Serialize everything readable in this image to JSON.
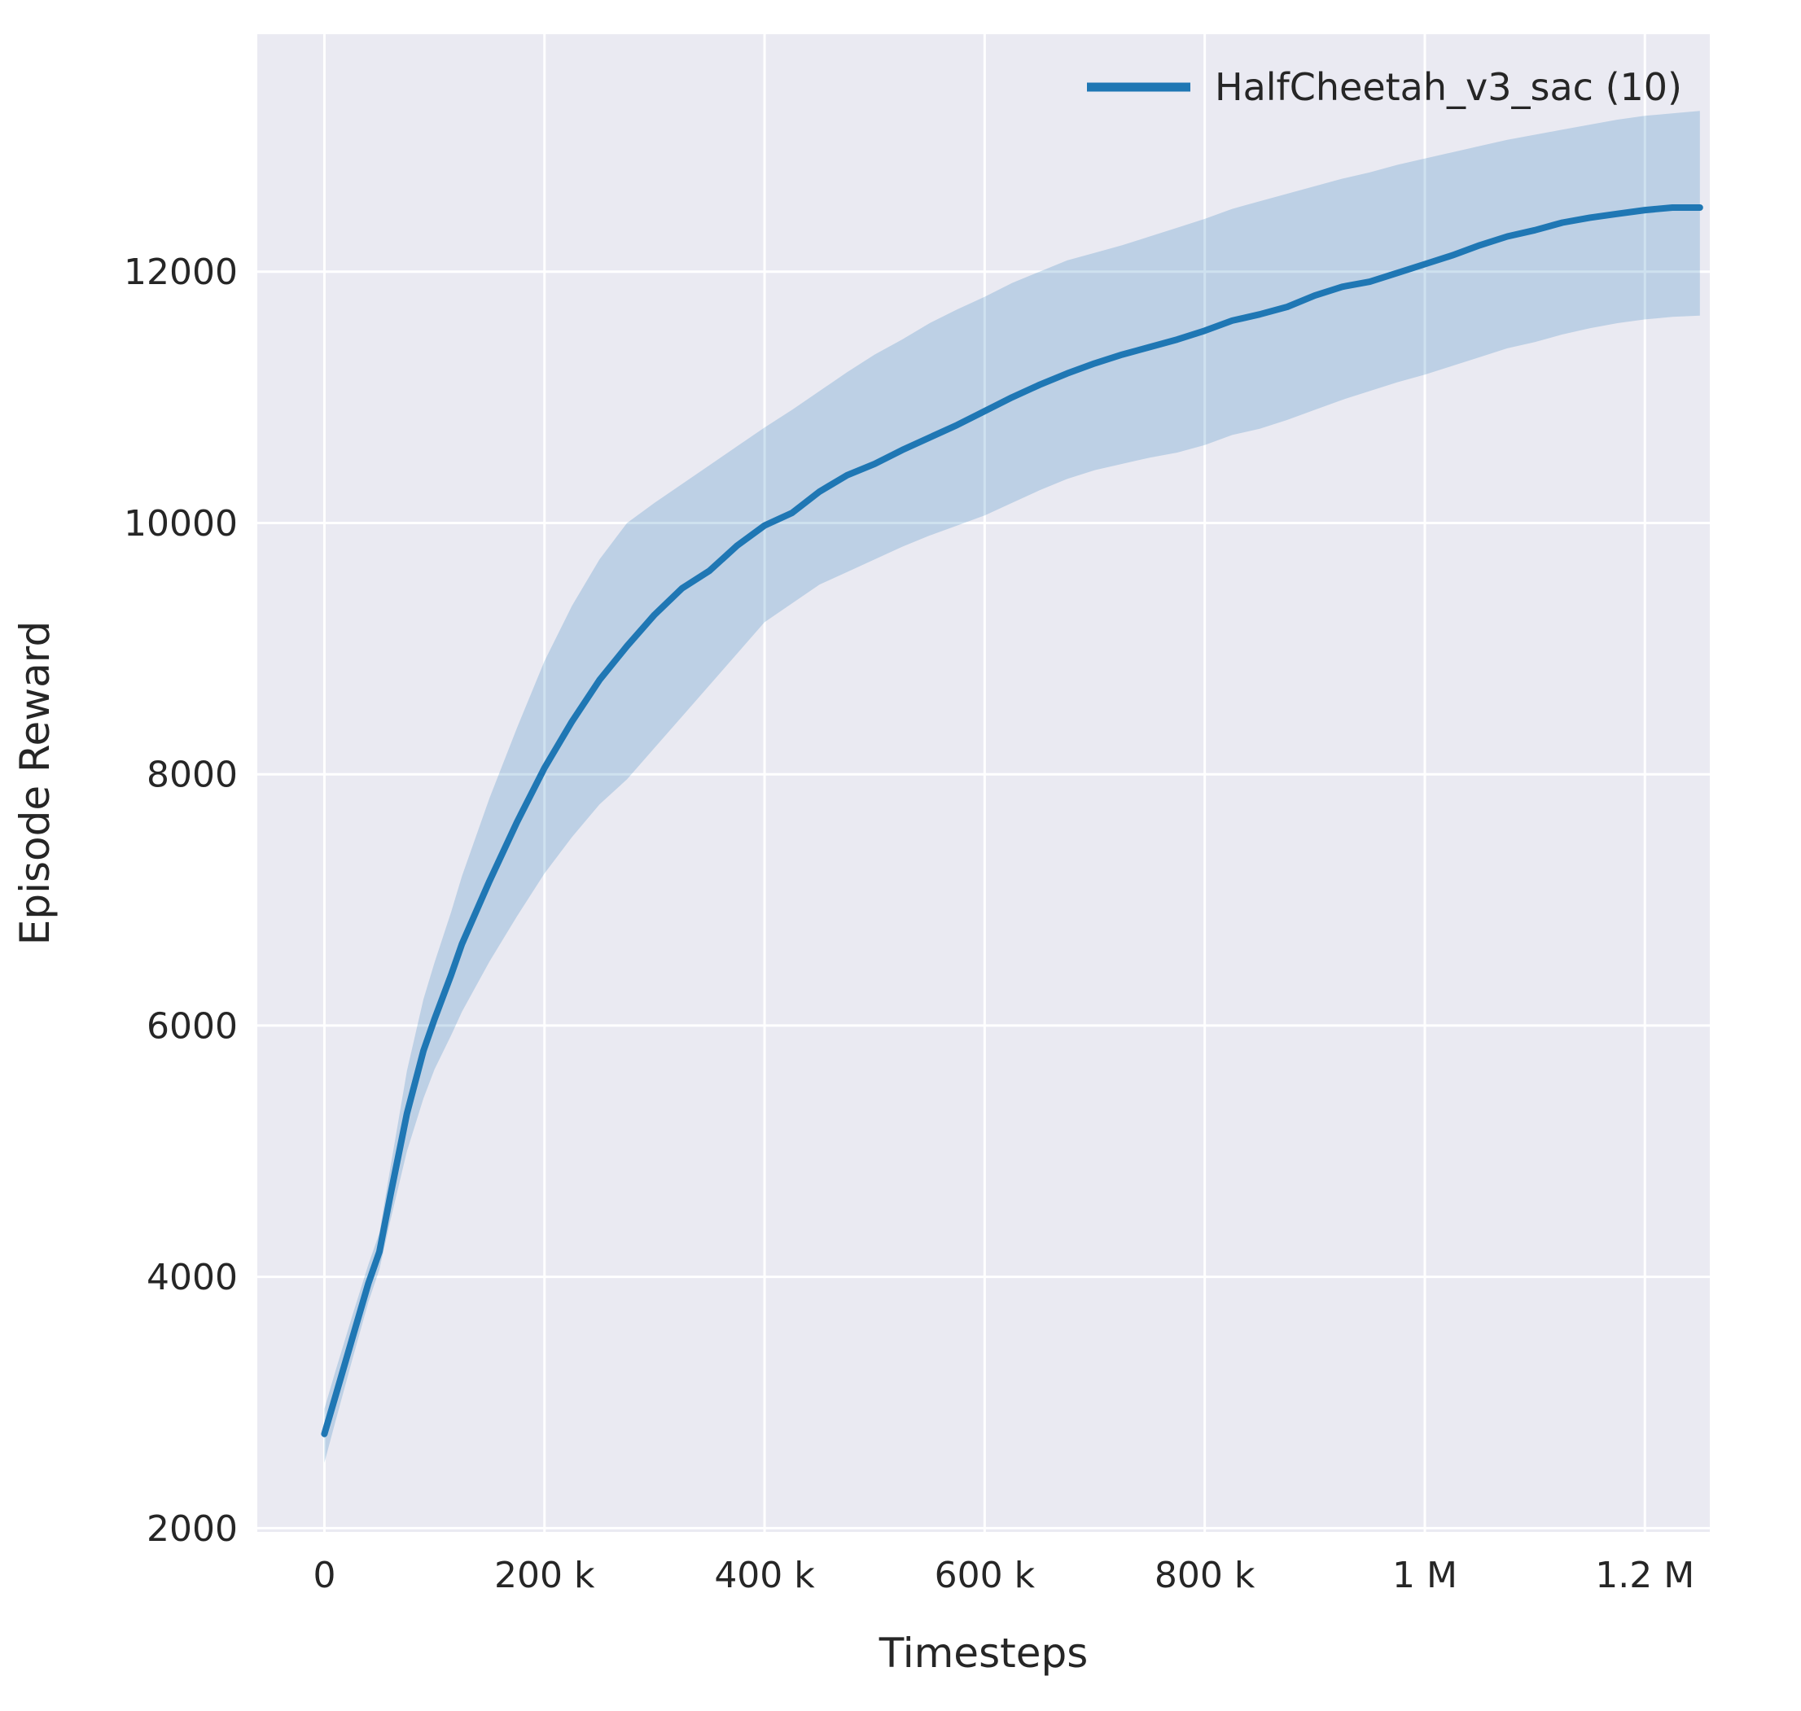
{
  "figure": {
    "background_color": "#ffffff",
    "plot_background_color": "#eaeaf2",
    "gridline_color": "#ffffff",
    "text_color": "#262626"
  },
  "legend": {
    "entries": [
      {
        "label": "HalfCheetah_v3_sac (10)",
        "color": "#1f77b4"
      }
    ],
    "position": "upper right",
    "frame": false
  },
  "chart_data": {
    "type": "line",
    "title": "",
    "xlabel": "Timesteps",
    "ylabel": "Episode Reward",
    "grid": true,
    "xlim": [
      -61000,
      1259000
    ],
    "ylim": [
      1970,
      13890
    ],
    "x_ticks": [
      {
        "value": 0,
        "label": "0"
      },
      {
        "value": 200000,
        "label": "200 k"
      },
      {
        "value": 400000,
        "label": "400 k"
      },
      {
        "value": 600000,
        "label": "600 k"
      },
      {
        "value": 800000,
        "label": "800 k"
      },
      {
        "value": 1000000,
        "label": "1 M"
      },
      {
        "value": 1200000,
        "label": "1.2 M"
      }
    ],
    "y_ticks": [
      {
        "value": 2000,
        "label": "2000"
      },
      {
        "value": 4000,
        "label": "4000"
      },
      {
        "value": 6000,
        "label": "6000"
      },
      {
        "value": 8000,
        "label": "8000"
      },
      {
        "value": 10000,
        "label": "10000"
      },
      {
        "value": 12000,
        "label": "12000"
      }
    ],
    "band_opacity": 0.22,
    "line_width": 8,
    "series": [
      {
        "name": "HalfCheetah_v3_sac (10)",
        "color": "#1f77b4",
        "x": [
          0,
          10000,
          25000,
          40000,
          50000,
          60000,
          75000,
          90000,
          100000,
          115000,
          125000,
          150000,
          175000,
          200000,
          225000,
          250000,
          275000,
          300000,
          325000,
          350000,
          375000,
          400000,
          425000,
          450000,
          475000,
          500000,
          525000,
          550000,
          575000,
          600000,
          625000,
          650000,
          675000,
          700000,
          725000,
          750000,
          775000,
          800000,
          825000,
          850000,
          875000,
          900000,
          925000,
          950000,
          975000,
          1000000,
          1025000,
          1050000,
          1075000,
          1100000,
          1125000,
          1150000,
          1175000,
          1200000,
          1225000,
          1250000
        ],
        "mean": [
          2750,
          3050,
          3500,
          3950,
          4200,
          4650,
          5300,
          5800,
          6050,
          6400,
          6650,
          7150,
          7620,
          8050,
          8420,
          8750,
          9020,
          9270,
          9480,
          9620,
          9820,
          9980,
          10080,
          10250,
          10380,
          10470,
          10580,
          10680,
          10780,
          10890,
          11000,
          11100,
          11190,
          11270,
          11340,
          11400,
          11460,
          11530,
          11610,
          11660,
          11720,
          11810,
          11880,
          11920,
          11990,
          12060,
          12130,
          12210,
          12280,
          12330,
          12390,
          12430,
          12460,
          12490,
          12510,
          12510
        ],
        "lower": [
          2520,
          2850,
          3330,
          3800,
          4060,
          4450,
          5000,
          5420,
          5650,
          5920,
          6110,
          6510,
          6870,
          7210,
          7500,
          7760,
          7960,
          8210,
          8460,
          8710,
          8960,
          9210,
          9360,
          9510,
          9610,
          9710,
          9810,
          9900,
          9980,
          10060,
          10160,
          10260,
          10350,
          10420,
          10470,
          10520,
          10560,
          10620,
          10700,
          10750,
          10820,
          10900,
          10980,
          11050,
          11120,
          11180,
          11250,
          11320,
          11390,
          11440,
          11500,
          11550,
          11590,
          11620,
          11640,
          11650
        ],
        "upper": [
          2950,
          3250,
          3680,
          4100,
          4350,
          4870,
          5640,
          6210,
          6500,
          6900,
          7190,
          7810,
          8370,
          8900,
          9340,
          9710,
          10000,
          10160,
          10310,
          10460,
          10610,
          10760,
          10900,
          11050,
          11200,
          11340,
          11460,
          11590,
          11700,
          11800,
          11910,
          12000,
          12090,
          12150,
          12210,
          12280,
          12350,
          12420,
          12500,
          12560,
          12620,
          12680,
          12740,
          12790,
          12850,
          12900,
          12950,
          13000,
          13050,
          13090,
          13130,
          13170,
          13210,
          13240,
          13260,
          13280
        ]
      }
    ]
  }
}
